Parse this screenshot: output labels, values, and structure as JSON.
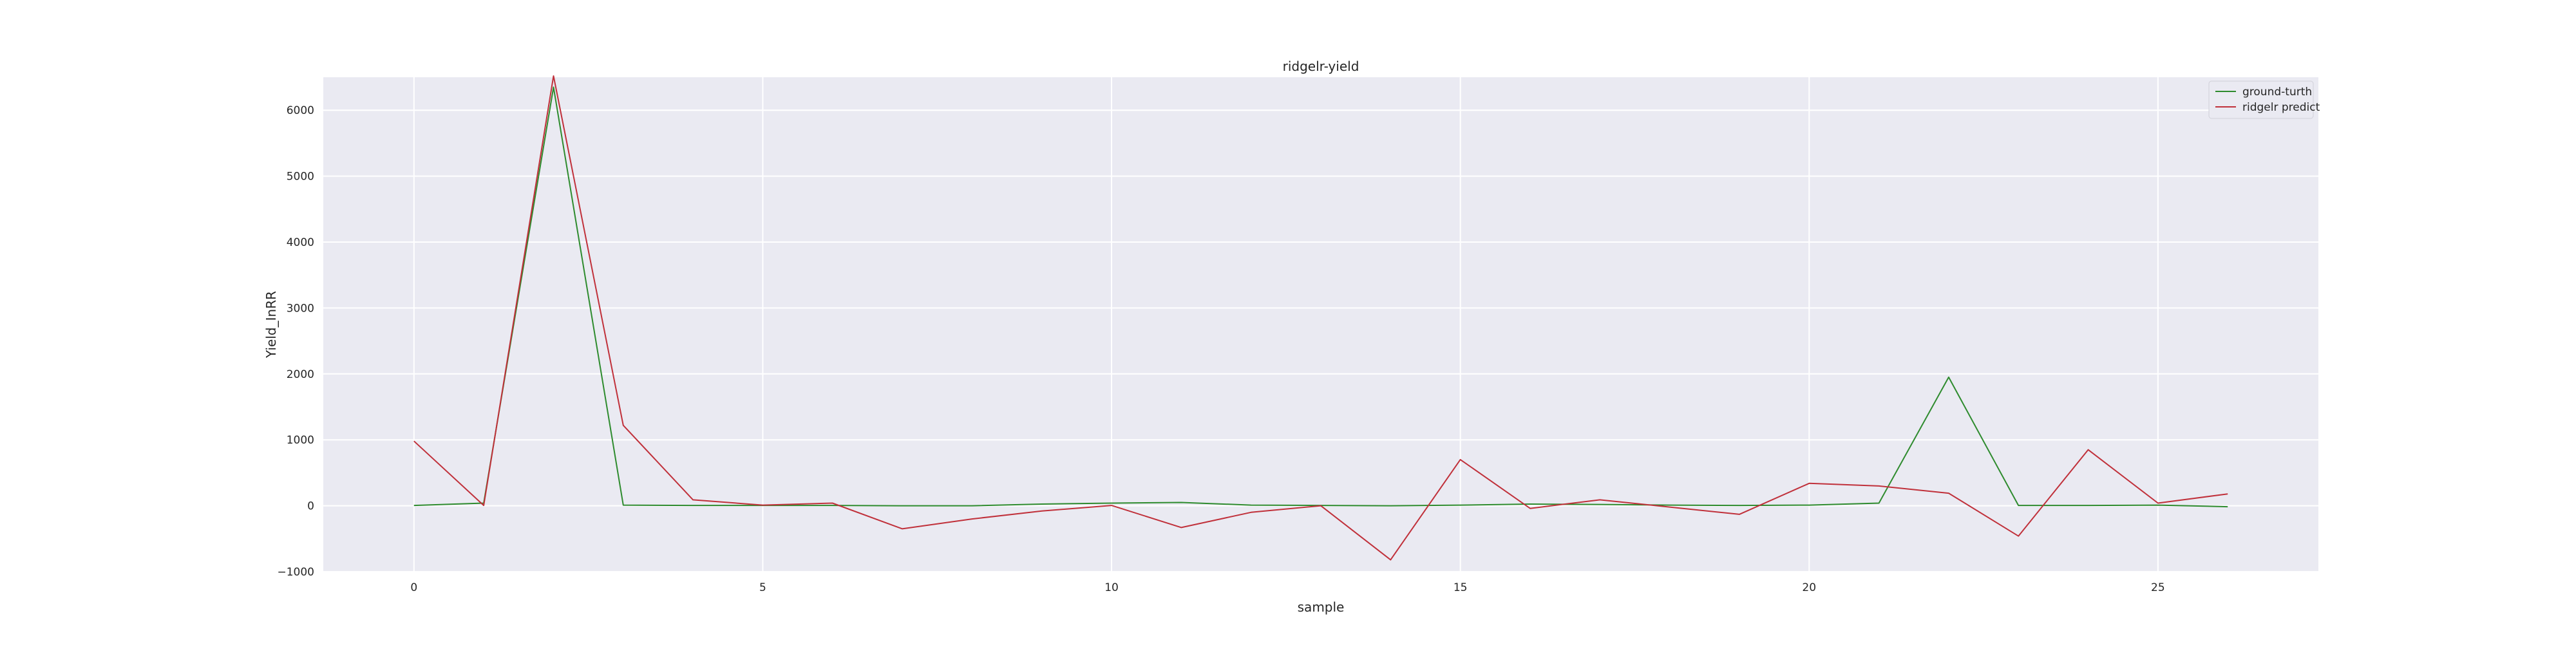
{
  "chart_data": {
    "type": "line",
    "title": "ridgelr-yield",
    "xlabel": "sample",
    "ylabel": "Yield_InRR",
    "xlim": [
      -1.3,
      27.3
    ],
    "ylim": [
      -1000,
      6500
    ],
    "x": [
      0,
      1,
      2,
      3,
      4,
      5,
      6,
      7,
      8,
      9,
      10,
      11,
      12,
      13,
      14,
      15,
      16,
      17,
      18,
      19,
      20,
      21,
      22,
      23,
      24,
      25,
      26
    ],
    "xticks": [
      0,
      5,
      10,
      15,
      20,
      25
    ],
    "xtick_labels": [
      "0",
      "5",
      "10",
      "15",
      "20",
      "25"
    ],
    "yticks": [
      -1000,
      0,
      1000,
      2000,
      3000,
      4000,
      5000,
      6000
    ],
    "ytick_labels": [
      "−1000",
      "0",
      "1000",
      "2000",
      "3000",
      "4000",
      "5000",
      "6000"
    ],
    "grid": true,
    "legend_position": "top-right",
    "series": [
      {
        "name": "ground-turth",
        "color": "#2e8b2e",
        "values": [
          5,
          40,
          6350,
          10,
          5,
          5,
          5,
          0,
          0,
          25,
          40,
          50,
          10,
          5,
          0,
          10,
          25,
          20,
          10,
          5,
          10,
          40,
          1950,
          5,
          5,
          10,
          -15
        ]
      },
      {
        "name": "ridgelr predict",
        "color": "#c0303a",
        "values": [
          980,
          5,
          6520,
          1220,
          90,
          10,
          40,
          -350,
          -200,
          -80,
          5,
          -330,
          -100,
          0,
          -820,
          700,
          -40,
          90,
          -20,
          -130,
          340,
          300,
          190,
          -460,
          850,
          40,
          180
        ]
      }
    ]
  }
}
